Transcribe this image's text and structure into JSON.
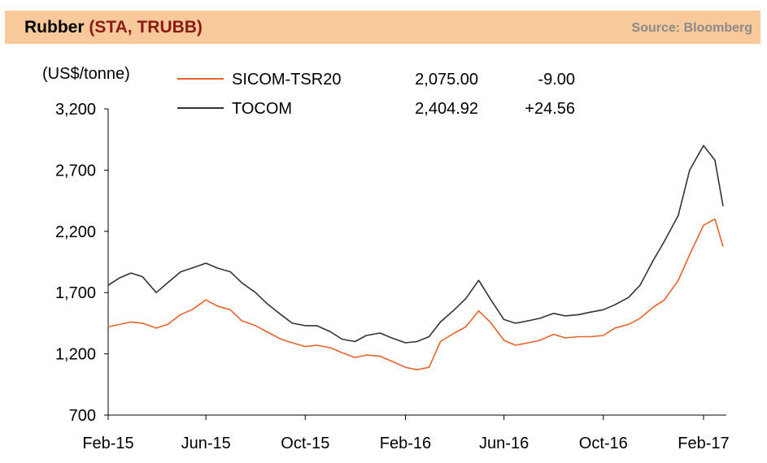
{
  "header": {
    "title_main": "Rubber",
    "title_ticker": "(STA, TRUBB)",
    "source": "Source: Bloomberg"
  },
  "chart_data": {
    "type": "line",
    "ylabel": "(US$/tonne)",
    "ylim": [
      700,
      3200
    ],
    "yticks": [
      "3,200",
      "2,700",
      "2,200",
      "1,700",
      "1,200",
      "700"
    ],
    "ytick_values": [
      3200,
      2700,
      2200,
      1700,
      1200,
      700
    ],
    "xlim": [
      "2015-02-01",
      "2017-03-01"
    ],
    "xticks": [
      "Feb-15",
      "Jun-15",
      "Oct-15",
      "Feb-16",
      "Jun-16",
      "Oct-16",
      "Feb-17"
    ],
    "xtick_dates": [
      "2015-02-01",
      "2015-06-01",
      "2015-10-01",
      "2016-02-01",
      "2016-06-01",
      "2016-10-01",
      "2017-02-01"
    ],
    "grid": false,
    "legend_position": "top",
    "series": [
      {
        "name": "SICOM-TSR20",
        "color": "#e8622a",
        "last": "2,075.00",
        "change": "-9.00",
        "x": [
          "2015-02-01",
          "2015-02-15",
          "2015-03-01",
          "2015-03-15",
          "2015-04-01",
          "2015-04-15",
          "2015-05-01",
          "2015-05-15",
          "2015-06-01",
          "2015-06-15",
          "2015-07-01",
          "2015-07-15",
          "2015-08-01",
          "2015-08-15",
          "2015-09-01",
          "2015-09-15",
          "2015-10-01",
          "2015-10-15",
          "2015-11-01",
          "2015-11-15",
          "2015-12-01",
          "2015-12-15",
          "2016-01-01",
          "2016-01-15",
          "2016-02-01",
          "2016-02-15",
          "2016-03-01",
          "2016-03-15",
          "2016-04-01",
          "2016-04-15",
          "2016-05-01",
          "2016-05-15",
          "2016-06-01",
          "2016-06-15",
          "2016-07-01",
          "2016-07-15",
          "2016-08-01",
          "2016-08-15",
          "2016-09-01",
          "2016-09-15",
          "2016-10-01",
          "2016-10-15",
          "2016-11-01",
          "2016-11-15",
          "2016-12-01",
          "2016-12-15",
          "2017-01-01",
          "2017-01-15",
          "2017-02-01",
          "2017-02-15",
          "2017-02-25"
        ],
        "values": [
          1420,
          1440,
          1460,
          1450,
          1410,
          1440,
          1520,
          1560,
          1640,
          1590,
          1560,
          1470,
          1430,
          1380,
          1320,
          1290,
          1260,
          1270,
          1250,
          1210,
          1170,
          1190,
          1180,
          1140,
          1090,
          1070,
          1090,
          1300,
          1370,
          1420,
          1550,
          1460,
          1310,
          1270,
          1290,
          1310,
          1360,
          1330,
          1340,
          1340,
          1350,
          1410,
          1440,
          1490,
          1580,
          1640,
          1800,
          2010,
          2250,
          2300,
          2075
        ]
      },
      {
        "name": "TOCOM",
        "color": "#333333",
        "last": "2,404.92",
        "change": "+24.56",
        "x": [
          "2015-02-01",
          "2015-02-15",
          "2015-03-01",
          "2015-03-15",
          "2015-04-01",
          "2015-04-15",
          "2015-05-01",
          "2015-05-15",
          "2015-06-01",
          "2015-06-15",
          "2015-07-01",
          "2015-07-15",
          "2015-08-01",
          "2015-08-15",
          "2015-09-01",
          "2015-09-15",
          "2015-10-01",
          "2015-10-15",
          "2015-11-01",
          "2015-11-15",
          "2015-12-01",
          "2015-12-15",
          "2016-01-01",
          "2016-01-15",
          "2016-02-01",
          "2016-02-15",
          "2016-03-01",
          "2016-03-15",
          "2016-04-01",
          "2016-04-15",
          "2016-05-01",
          "2016-05-15",
          "2016-06-01",
          "2016-06-15",
          "2016-07-01",
          "2016-07-15",
          "2016-08-01",
          "2016-08-15",
          "2016-09-01",
          "2016-09-15",
          "2016-10-01",
          "2016-10-15",
          "2016-11-01",
          "2016-11-15",
          "2016-12-01",
          "2016-12-15",
          "2017-01-01",
          "2017-01-15",
          "2017-02-01",
          "2017-02-15",
          "2017-02-25"
        ],
        "values": [
          1760,
          1820,
          1860,
          1830,
          1700,
          1780,
          1870,
          1900,
          1940,
          1900,
          1870,
          1780,
          1700,
          1610,
          1520,
          1450,
          1430,
          1430,
          1380,
          1320,
          1300,
          1350,
          1370,
          1330,
          1290,
          1300,
          1340,
          1460,
          1560,
          1650,
          1800,
          1650,
          1480,
          1450,
          1470,
          1490,
          1530,
          1510,
          1520,
          1540,
          1560,
          1600,
          1660,
          1760,
          1960,
          2120,
          2330,
          2700,
          2900,
          2780,
          2405
        ]
      }
    ]
  }
}
